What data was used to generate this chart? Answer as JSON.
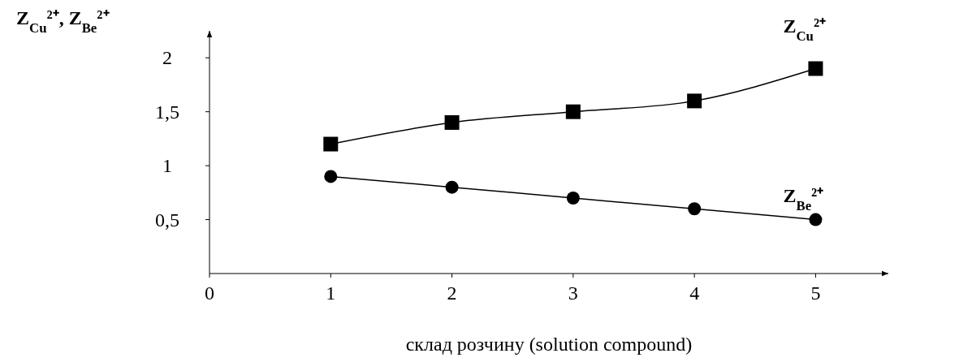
{
  "chart_data": {
    "type": "line",
    "xlabel": "склад розчину (solution compound)",
    "ylabel": "Z$_{Cu}$²⁺, Z$_{Be}$²⁺",
    "x": [
      1,
      2,
      3,
      4,
      5
    ],
    "xlim": [
      0,
      5.6
    ],
    "xticks": [
      0,
      1,
      2,
      3,
      4,
      5
    ],
    "ylim": [
      0,
      2.25
    ],
    "yticks": [
      {
        "value": 0.5,
        "label": "0,5"
      },
      {
        "value": 1,
        "label": "1"
      },
      {
        "value": 1.5,
        "label": "1,5"
      },
      {
        "value": 2,
        "label": "2"
      }
    ],
    "grid": false,
    "legend": false,
    "series": [
      {
        "name": "Z$_{Cu}$²⁺",
        "color": "#000000",
        "marker": "square",
        "values": [
          1.2,
          1.4,
          1.5,
          1.6,
          1.9
        ]
      },
      {
        "name": "Z$_{Be}$²⁺",
        "color": "#000000",
        "marker": "circle",
        "values": [
          0.9,
          0.8,
          0.7,
          0.6,
          0.5
        ]
      }
    ]
  }
}
